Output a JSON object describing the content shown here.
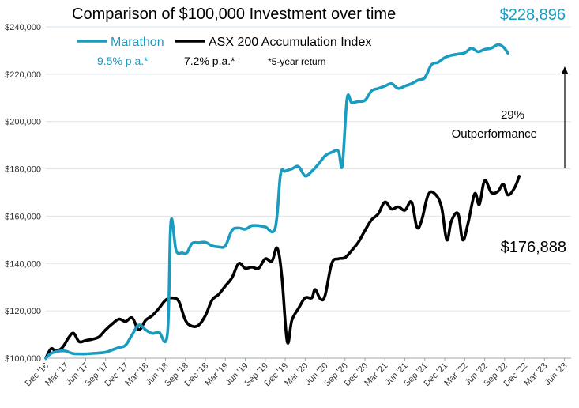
{
  "colors": {
    "marathon": "#1a9cc1",
    "index": "#000000",
    "grid": "#d6e6f0",
    "axis_text": "#333333"
  },
  "header": {
    "title": "Comparison of $100,000 Investment over time",
    "final_marathon_value": "$228,896"
  },
  "legend": {
    "marathon_label": "Marathon",
    "index_label": "ASX 200 Accumulation Index",
    "marathon_return": "9.5% p.a.*",
    "index_return": "7.2% p.a.*",
    "footnote": "*5-year return"
  },
  "annotations": {
    "outperformance_pct": "29%",
    "outperformance_label": "Outperformance",
    "final_index_value": "$176,888"
  },
  "chart_data": {
    "type": "line",
    "title": "Comparison of $100,000 Investment over time",
    "xlabel": "",
    "ylabel": "",
    "ylim": [
      100000,
      240000
    ],
    "yticks": [
      100000,
      120000,
      140000,
      160000,
      180000,
      200000,
      220000,
      240000
    ],
    "ytick_labels": [
      "$100,000",
      "$120,000",
      "$140,000",
      "$160,000",
      "$180,000",
      "$200,000",
      "$220,000",
      "$240,000"
    ],
    "xlim": [
      0,
      79
    ],
    "xtick_positions": [
      0,
      3,
      6,
      9,
      12,
      15,
      18,
      21,
      24,
      27,
      30,
      33,
      36,
      39,
      42,
      45,
      48,
      51,
      54,
      57,
      60,
      63,
      66,
      69,
      72,
      75,
      78
    ],
    "xtick_labels": [
      "Dec '16",
      "Mar '17",
      "Jun '17",
      "Sep '17",
      "Dec '17",
      "Mar '18",
      "Jun '18",
      "Sep '18",
      "Dec '18",
      "Mar '19",
      "Jun '19",
      "Sep '19",
      "Dec '19",
      "Mar '20",
      "Jun '20",
      "Sep '20",
      "Dec '20",
      "Mar '21",
      "Jun '21",
      "Sep '21",
      "Dec '21",
      "Mar '22",
      "Jun '22",
      "Sep '22",
      "Dec '22",
      "Mar '23",
      "Jun '23"
    ],
    "grid": true,
    "series": [
      {
        "name": "Marathon",
        "points": [
          [
            0,
            100000
          ],
          [
            0.8,
            102000
          ],
          [
            2,
            103000
          ],
          [
            3,
            103000
          ],
          [
            4,
            102000
          ],
          [
            5,
            101800
          ],
          [
            6,
            101800
          ],
          [
            7,
            102000
          ],
          [
            8,
            102200
          ],
          [
            9,
            102500
          ],
          [
            10,
            103500
          ],
          [
            11,
            104500
          ],
          [
            12,
            105500
          ],
          [
            13,
            110000
          ],
          [
            14,
            114000
          ],
          [
            15,
            112000
          ],
          [
            16,
            110500
          ],
          [
            17,
            111000
          ],
          [
            18.3,
            110500
          ],
          [
            18.8,
            157500
          ],
          [
            19.6,
            145500
          ],
          [
            20.5,
            144500
          ],
          [
            21.2,
            144500
          ],
          [
            22,
            148500
          ],
          [
            23,
            148800
          ],
          [
            24,
            149000
          ],
          [
            25,
            147500
          ],
          [
            26,
            147000
          ],
          [
            27,
            147500
          ],
          [
            28,
            154000
          ],
          [
            29,
            155000
          ],
          [
            30,
            154500
          ],
          [
            31,
            156000
          ],
          [
            32,
            156000
          ],
          [
            33,
            155500
          ],
          [
            34.5,
            155000
          ],
          [
            35.3,
            177500
          ],
          [
            36,
            179000
          ],
          [
            37,
            180000
          ],
          [
            38,
            181000
          ],
          [
            39,
            177000
          ],
          [
            40,
            179000
          ],
          [
            41,
            182000
          ],
          [
            42,
            185500
          ],
          [
            43,
            187000
          ],
          [
            44,
            187500
          ],
          [
            44.6,
            181500
          ],
          [
            45.3,
            209500
          ],
          [
            46,
            208000
          ],
          [
            47,
            208500
          ],
          [
            48,
            209000
          ],
          [
            49,
            213000
          ],
          [
            50,
            214000
          ],
          [
            51,
            215000
          ],
          [
            52,
            216000
          ],
          [
            53,
            214000
          ],
          [
            54,
            215000
          ],
          [
            55,
            216000
          ],
          [
            56,
            217500
          ],
          [
            57,
            218500
          ],
          [
            58,
            224000
          ],
          [
            59,
            225000
          ],
          [
            60,
            227000
          ],
          [
            61,
            228000
          ],
          [
            62,
            228500
          ],
          [
            63,
            229000
          ],
          [
            64,
            231000
          ],
          [
            65,
            229500
          ],
          [
            66,
            230500
          ],
          [
            67,
            231000
          ],
          [
            68,
            232500
          ],
          [
            68.8,
            231500
          ],
          [
            69.5,
            228896
          ]
        ]
      },
      {
        "name": "ASX 200 Accumulation Index",
        "points": [
          [
            0,
            100000
          ],
          [
            0.8,
            104000
          ],
          [
            1.5,
            103000
          ],
          [
            2.5,
            104500
          ],
          [
            3.5,
            109000
          ],
          [
            4.2,
            110500
          ],
          [
            5,
            107000
          ],
          [
            6,
            107500
          ],
          [
            7,
            108000
          ],
          [
            8,
            109000
          ],
          [
            9,
            112000
          ],
          [
            10,
            114500
          ],
          [
            11,
            116500
          ],
          [
            12,
            115500
          ],
          [
            13,
            117000
          ],
          [
            14,
            112000
          ],
          [
            15,
            116000
          ],
          [
            16,
            118000
          ],
          [
            17,
            121000
          ],
          [
            18,
            124500
          ],
          [
            19,
            125500
          ],
          [
            20,
            124000
          ],
          [
            21,
            116000
          ],
          [
            22,
            113500
          ],
          [
            23,
            114000
          ],
          [
            24,
            118000
          ],
          [
            25,
            124500
          ],
          [
            26,
            127000
          ],
          [
            27,
            130500
          ],
          [
            28,
            134000
          ],
          [
            29,
            140000
          ],
          [
            30,
            138000
          ],
          [
            31,
            138500
          ],
          [
            32,
            138000
          ],
          [
            33,
            142000
          ],
          [
            34,
            141000
          ],
          [
            34.8,
            146500
          ],
          [
            35.5,
            134500
          ],
          [
            36.3,
            107000
          ],
          [
            37,
            116000
          ],
          [
            38,
            121000
          ],
          [
            39,
            125500
          ],
          [
            40,
            125500
          ],
          [
            40.5,
            129000
          ],
          [
            41.3,
            125000
          ],
          [
            42,
            126500
          ],
          [
            43,
            140000
          ],
          [
            44,
            142000
          ],
          [
            45,
            142500
          ],
          [
            46,
            145500
          ],
          [
            47,
            149000
          ],
          [
            48,
            154000
          ],
          [
            49,
            158500
          ],
          [
            50,
            161000
          ],
          [
            51,
            166000
          ],
          [
            52,
            163000
          ],
          [
            53,
            164000
          ],
          [
            54,
            162500
          ],
          [
            55,
            166000
          ],
          [
            55.8,
            155500
          ],
          [
            56.5,
            158000
          ],
          [
            57.5,
            169000
          ],
          [
            58.5,
            169500
          ],
          [
            59.5,
            164000
          ],
          [
            60.3,
            150000
          ],
          [
            61,
            158000
          ],
          [
            62,
            161000
          ],
          [
            62.7,
            150000
          ],
          [
            63.5,
            157000
          ],
          [
            64.5,
            169500
          ],
          [
            65.2,
            165000
          ],
          [
            66,
            175000
          ],
          [
            67,
            170000
          ],
          [
            68,
            170500
          ],
          [
            68.8,
            173500
          ],
          [
            69.5,
            169000
          ],
          [
            70.5,
            172000
          ],
          [
            71.2,
            176888
          ]
        ]
      }
    ],
    "legend": "top-left"
  }
}
